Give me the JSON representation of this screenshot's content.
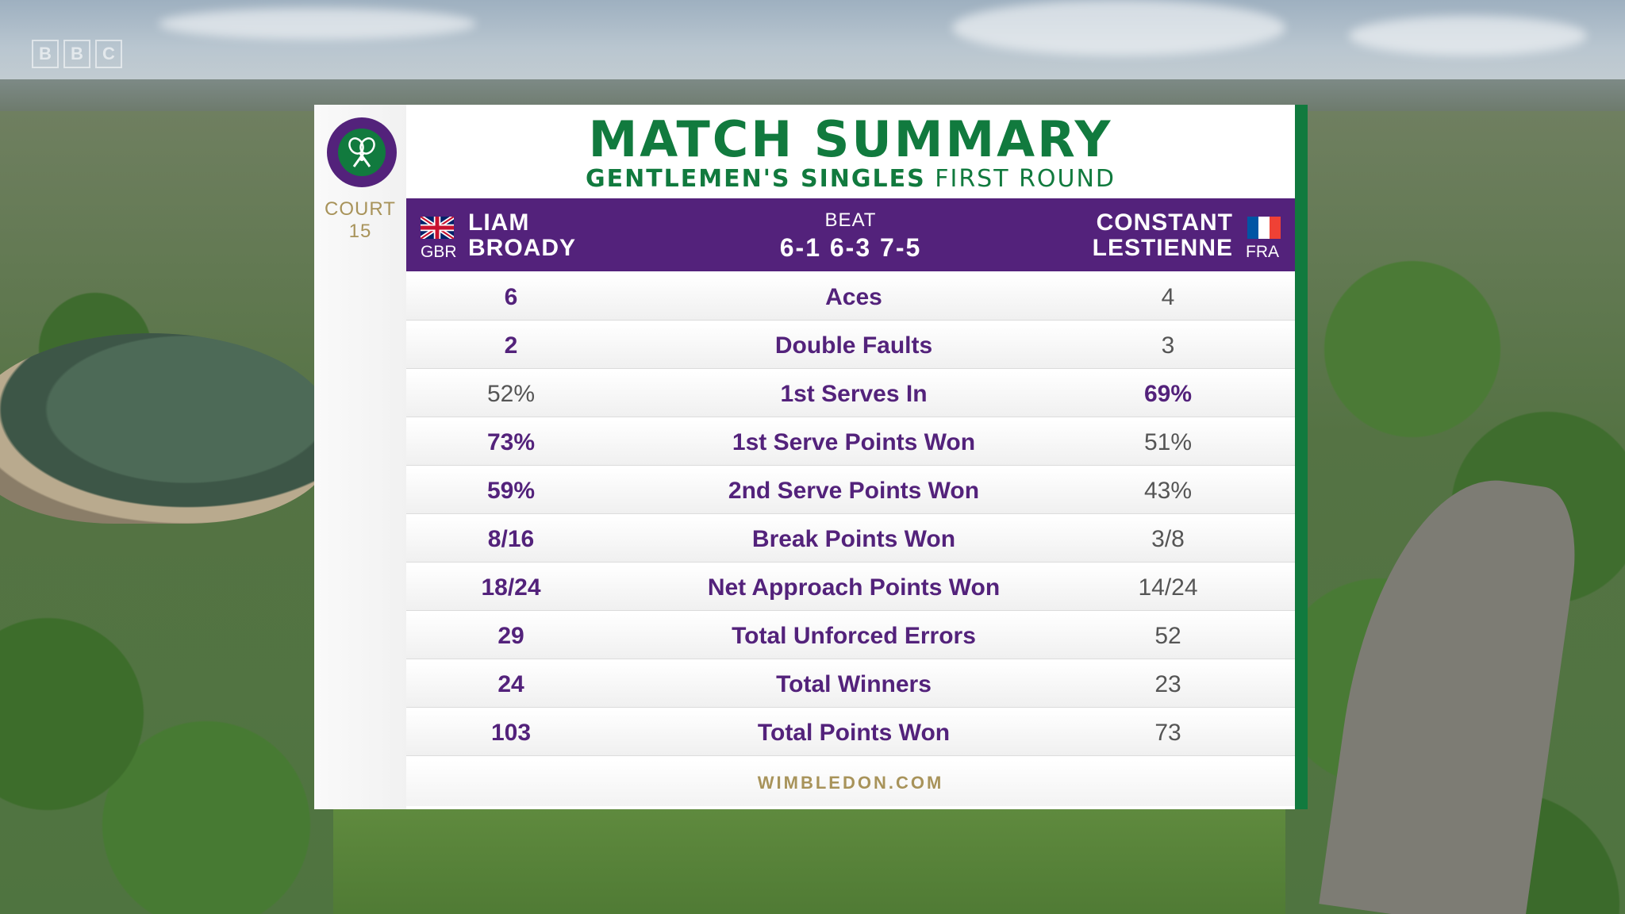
{
  "broadcaster": {
    "logo_letters": [
      "B",
      "B",
      "C"
    ]
  },
  "header": {
    "title": "MATCH SUMMARY",
    "subtitle_bold": "GENTLEMEN'S SINGLES",
    "subtitle_rest": "FIRST ROUND",
    "court_label": "COURT",
    "court_number": "15"
  },
  "result": {
    "winner": {
      "first": "LIAM",
      "last": "BROADY",
      "country": "GBR"
    },
    "loser": {
      "first": "CONSTANT",
      "last": "LESTIENNE",
      "country": "FRA"
    },
    "verb": "BEAT",
    "score": "6-1 6-3 7-5"
  },
  "stats": [
    {
      "label": "Aces",
      "left": "6",
      "right": "4",
      "leader": "left"
    },
    {
      "label": "Double Faults",
      "left": "2",
      "right": "3",
      "leader": "left"
    },
    {
      "label": "1st Serves In",
      "left": "52%",
      "right": "69%",
      "leader": "right"
    },
    {
      "label": "1st Serve Points Won",
      "left": "73%",
      "right": "51%",
      "leader": "left"
    },
    {
      "label": "2nd Serve Points Won",
      "left": "59%",
      "right": "43%",
      "leader": "left"
    },
    {
      "label": "Break Points Won",
      "left": "8/16",
      "right": "3/8",
      "leader": "left"
    },
    {
      "label": "Net Approach Points Won",
      "left": "18/24",
      "right": "14/24",
      "leader": "left"
    },
    {
      "label": "Total Unforced Errors",
      "left": "29",
      "right": "52",
      "leader": "left"
    },
    {
      "label": "Total Winners",
      "left": "24",
      "right": "23",
      "leader": "left"
    },
    {
      "label": "Total Points Won",
      "left": "103",
      "right": "73",
      "leader": "left"
    }
  ],
  "footer": {
    "website": "WIMBLEDON.COM"
  },
  "colors": {
    "purple": "#53227b",
    "green": "#117a3e",
    "gold": "#a8935a"
  }
}
